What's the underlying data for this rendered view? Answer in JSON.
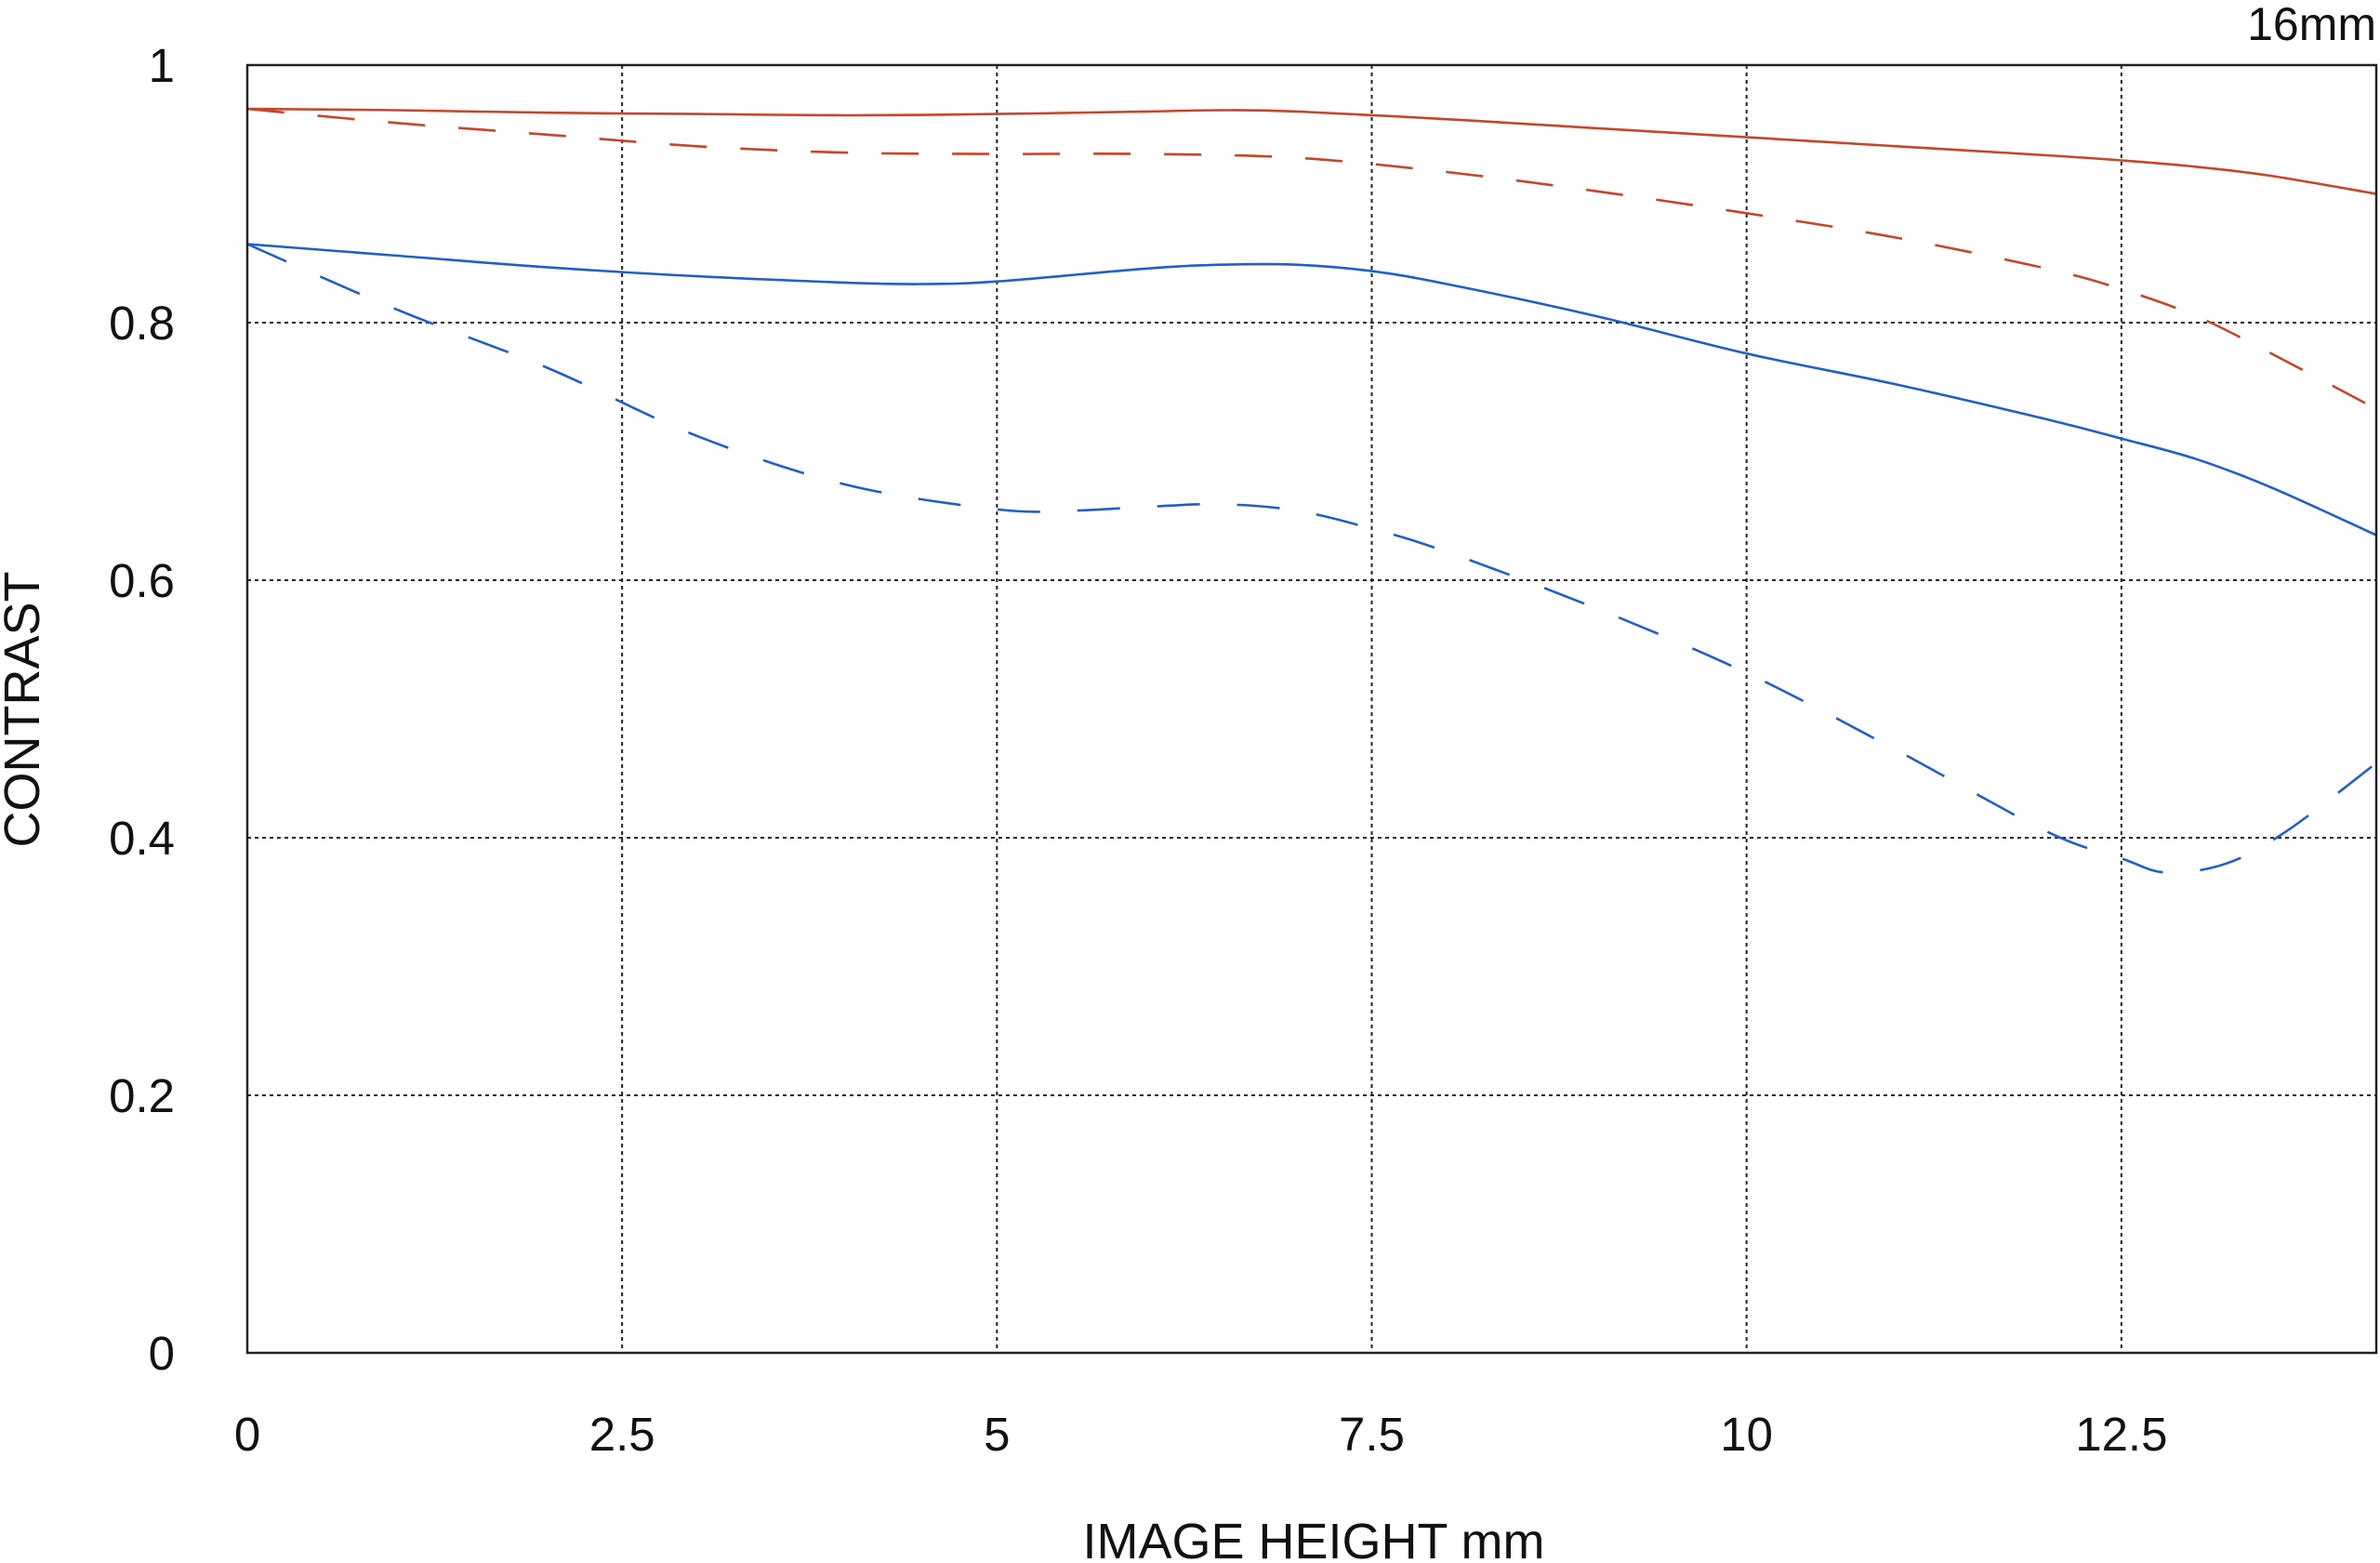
{
  "chart_data": {
    "type": "line",
    "title": "",
    "corner_label": "16mm",
    "xlabel": "IMAGE HEIGHT  mm",
    "ylabel": "CONTRAST",
    "xlim": [
      0,
      14.2
    ],
    "ylim": [
      0,
      1
    ],
    "xticks": [
      0,
      2.5,
      5,
      7.5,
      10,
      12.5
    ],
    "xtick_labels": [
      "0",
      "2.5",
      "5",
      "7.5",
      "10",
      "12.5"
    ],
    "yticks": [
      0,
      0.2,
      0.4,
      0.6,
      0.8,
      1
    ],
    "ytick_labels": [
      "0",
      "0.2",
      "0.4",
      "0.6",
      "0.8",
      "1"
    ],
    "grid": true,
    "colors": {
      "red": "#c8452a",
      "blue": "#1f5fcc",
      "grid": "#222222",
      "frame": "#222222"
    },
    "series": [
      {
        "color": "red",
        "dash": "solid",
        "x": [
          0,
          1,
          2,
          3,
          4,
          5,
          6,
          6.5,
          7,
          8,
          9,
          10,
          11,
          12,
          12.5,
          13,
          13.5,
          14.2
        ],
        "y": [
          0.966,
          0.965,
          0.963,
          0.962,
          0.961,
          0.962,
          0.964,
          0.965,
          0.964,
          0.958,
          0.951,
          0.944,
          0.937,
          0.93,
          0.926,
          0.921,
          0.914,
          0.9
        ]
      },
      {
        "color": "red",
        "dash": "dashed",
        "x": [
          0,
          1,
          2,
          3,
          4,
          5,
          6,
          7,
          8,
          9,
          10,
          11,
          12,
          12.5,
          13,
          13.5,
          14.2
        ],
        "y": [
          0.966,
          0.955,
          0.946,
          0.937,
          0.932,
          0.931,
          0.931,
          0.928,
          0.917,
          0.902,
          0.885,
          0.866,
          0.842,
          0.826,
          0.805,
          0.776,
          0.733
        ]
      },
      {
        "color": "blue",
        "dash": "solid",
        "x": [
          0,
          1,
          2,
          3,
          4,
          4.5,
          5,
          6,
          6.5,
          7,
          7.5,
          8,
          9,
          10,
          11,
          12,
          12.5,
          13,
          13.5,
          14.2
        ],
        "y": [
          0.861,
          0.852,
          0.843,
          0.836,
          0.831,
          0.83,
          0.832,
          0.842,
          0.845,
          0.845,
          0.84,
          0.83,
          0.805,
          0.776,
          0.752,
          0.725,
          0.71,
          0.694,
          0.672,
          0.635
        ]
      },
      {
        "color": "blue",
        "dash": "dashed",
        "x": [
          0,
          1,
          2,
          3,
          4,
          5,
          5.5,
          6,
          6.5,
          7,
          7.5,
          8,
          9,
          10,
          11,
          12,
          12.5,
          12.8,
          13.2,
          13.6,
          14.2
        ],
        "y": [
          0.861,
          0.81,
          0.765,
          0.712,
          0.674,
          0.655,
          0.654,
          0.657,
          0.659,
          0.654,
          0.64,
          0.622,
          0.578,
          0.528,
          0.468,
          0.405,
          0.384,
          0.373,
          0.38,
          0.405,
          0.458
        ]
      }
    ]
  }
}
